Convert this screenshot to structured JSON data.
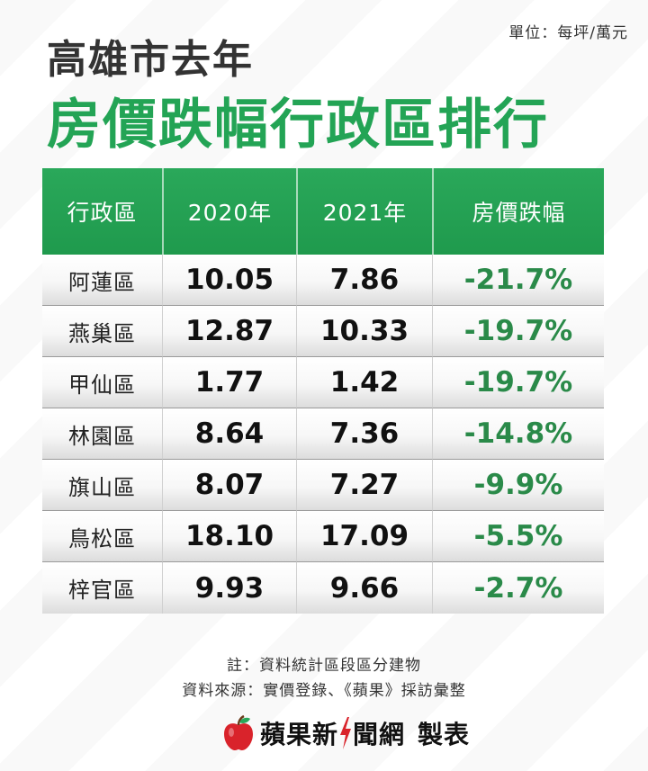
{
  "unit_label": "單位：每坪/萬元",
  "title_line1": "高雄市去年",
  "title_line2": "房價跌幅行政區排行",
  "table": {
    "headers": [
      "行政區",
      "2020年",
      "2021年",
      "房價跌幅"
    ],
    "rows": [
      {
        "district": "阿蓮區",
        "y2020": "10.05",
        "y2021": "7.86",
        "change": "-21.7%"
      },
      {
        "district": "燕巢區",
        "y2020": "12.87",
        "y2021": "10.33",
        "change": "-19.7%"
      },
      {
        "district": "甲仙區",
        "y2020": "1.77",
        "y2021": "1.42",
        "change": "-19.7%"
      },
      {
        "district": "林園區",
        "y2020": "8.64",
        "y2021": "7.36",
        "change": "-14.8%"
      },
      {
        "district": "旗山區",
        "y2020": "8.07",
        "y2021": "7.27",
        "change": "-9.9%"
      },
      {
        "district": "鳥松區",
        "y2020": "18.10",
        "y2021": "17.09",
        "change": "-5.5%"
      },
      {
        "district": "梓官區",
        "y2020": "9.93",
        "y2021": "9.66",
        "change": "-2.7%"
      }
    ]
  },
  "note": "註：資料統計區段區分建物",
  "source": "資料來源：實價登錄、《蘋果》採訪彙整",
  "brand": {
    "name_part1": "蘋果新",
    "name_part2": "聞網",
    "made_label": "製表",
    "apple_icon": "apple-logo-icon",
    "bolt_icon": "lightning-bolt-icon",
    "accent_color": "#23a455",
    "apple_color": "#d9232b"
  }
}
